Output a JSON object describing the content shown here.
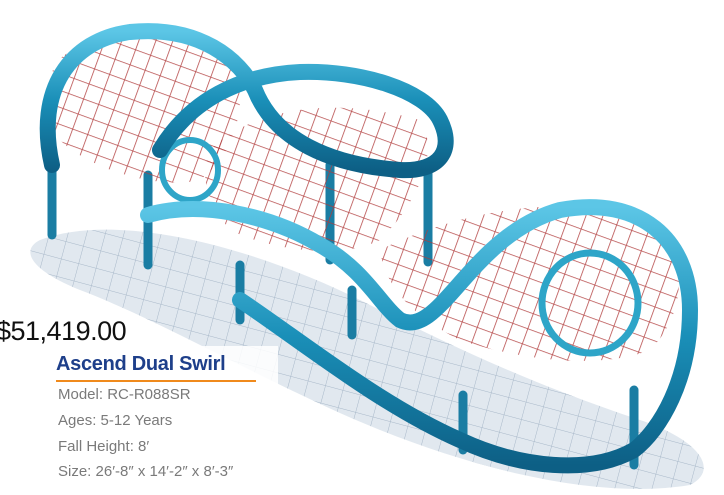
{
  "product": {
    "price": "$51,419.00",
    "name": "Ascend Dual Swirl",
    "specs": [
      "Model: RC-R088SR",
      "Ages: 5-12 Years",
      "Fall Height: 8′",
      "Size: 26′-8″ x 14′-2″ x 8′-3″"
    ]
  },
  "colors": {
    "frame": "#1a8fb8",
    "net": "#b03a3a",
    "title": "#1e3f8a",
    "underline": "#f08a1c",
    "spec_text": "#7a7a7a"
  }
}
